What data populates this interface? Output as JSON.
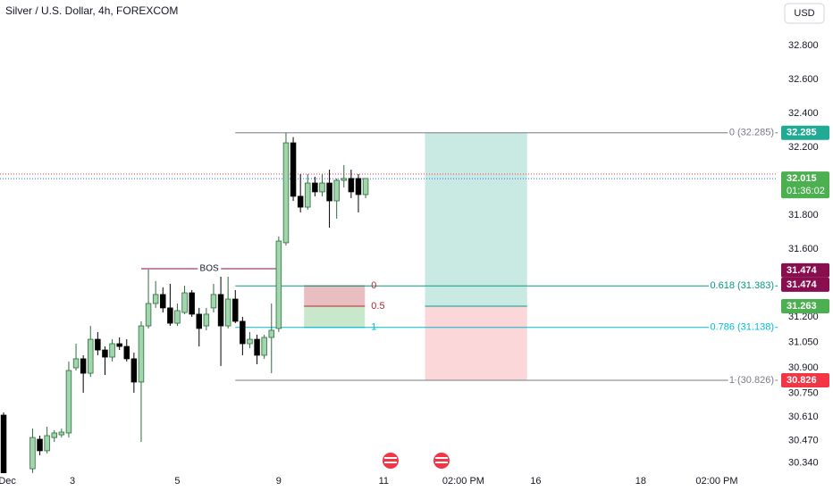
{
  "chart_data": {
    "type": "candlestick",
    "title": "Silver / U.S. Dollar, 4h, FOREXCOM",
    "currency": "USD",
    "up_color": "#9fd6ab",
    "up_border": "#2f6b3d",
    "down_color": "#000000",
    "x": [
      0,
      4,
      5,
      6,
      7,
      8,
      9,
      10,
      11,
      12,
      13,
      14,
      15,
      16,
      17,
      18,
      19,
      20,
      21,
      22,
      23,
      24,
      25,
      26,
      27,
      28,
      29,
      30,
      31,
      32,
      33,
      34,
      35,
      36,
      37,
      38,
      39,
      40,
      41,
      42,
      43,
      44,
      45,
      46,
      47,
      48,
      49,
      50
    ],
    "open": [
      30.621,
      30.305,
      30.479,
      30.411,
      30.489,
      30.505,
      30.516,
      30.9,
      30.953,
      30.868,
      31.068,
      31.005,
      30.963,
      31.042,
      31.026,
      30.953,
      30.816,
      31.147,
      31.279,
      31.332,
      31.253,
      31.163,
      31.226,
      31.342,
      31.216,
      31.147,
      31.253,
      31.332,
      31.147,
      31.305,
      31.174,
      31.042,
      31.068,
      30.974,
      31.079,
      31.132,
      31.637,
      32.226,
      31.911,
      31.847,
      31.989,
      31.937,
      31.989,
      31.884,
      32.005,
      32.016,
      32.016,
      31.921
    ],
    "high": [
      30.637,
      30.542,
      30.5,
      30.553,
      30.532,
      30.542,
      30.937,
      31.042,
      30.974,
      31.147,
      31.111,
      31.026,
      31.068,
      31.079,
      31.068,
      30.989,
      31.174,
      31.479,
      31.411,
      31.374,
      31.395,
      31.279,
      31.384,
      31.358,
      31.253,
      31.253,
      31.395,
      31.437,
      31.437,
      31.358,
      31.2,
      31.111,
      31.095,
      31.095,
      31.279,
      31.674,
      32.285,
      32.26,
      32.042,
      32.042,
      32.026,
      32.042,
      32.068,
      32.016,
      32.095,
      32.068,
      32.042,
      32.016
    ],
    "low": [
      30.28,
      30.28,
      30.384,
      30.395,
      30.463,
      30.489,
      30.489,
      30.884,
      30.753,
      30.847,
      30.974,
      30.858,
      30.937,
      31.005,
      30.937,
      30.753,
      30.463,
      31.132,
      31.253,
      31.226,
      31.147,
      31.147,
      31.216,
      31.2,
      31.026,
      31.121,
      31.226,
      30.911,
      31.132,
      31.163,
      30.974,
      31.016,
      30.921,
      30.953,
      30.868,
      31.111,
      31.621,
      31.884,
      31.816,
      31.832,
      31.911,
      31.911,
      31.726,
      31.779,
      31.963,
      31.9,
      31.816,
      31.9
    ],
    "close": [
      30.28,
      30.489,
      30.411,
      30.5,
      30.516,
      30.521,
      30.884,
      30.953,
      30.868,
      31.068,
      31.005,
      30.963,
      31.042,
      31.026,
      30.953,
      30.816,
      31.147,
      31.279,
      31.332,
      31.253,
      31.163,
      31.237,
      31.342,
      31.216,
      31.132,
      31.216,
      31.332,
      31.147,
      31.305,
      31.174,
      31.042,
      31.068,
      30.974,
      31.079,
      31.121,
      31.647,
      32.226,
      31.911,
      31.847,
      31.989,
      31.937,
      31.989,
      31.884,
      32.005,
      32.016,
      31.937,
      31.921,
      32.016
    ],
    "xlim": [
      -0.5,
      106.9
    ],
    "ylim": [
      30.279,
      33.068
    ],
    "xticks": [
      {
        "value": 0.5,
        "label": "Dec"
      },
      {
        "value": 9.5,
        "label": "3"
      },
      {
        "value": 24,
        "label": "5"
      },
      {
        "value": 38,
        "label": "9"
      },
      {
        "value": 52.5,
        "label": "11"
      },
      {
        "value": 63.5,
        "label": "02:00 PM"
      },
      {
        "value": 73.5,
        "label": "16"
      },
      {
        "value": 88,
        "label": "18"
      },
      {
        "value": 98.5,
        "label": "02:00 PM"
      }
    ],
    "yticks": [
      {
        "value": 32.8,
        "label": "32.800"
      },
      {
        "value": 32.6,
        "label": "32.600"
      },
      {
        "value": 32.4,
        "label": "32.400"
      },
      {
        "value": 32.2,
        "label": "32.200"
      },
      {
        "value": 31.8,
        "label": "31.800"
      },
      {
        "value": 31.6,
        "label": "31.600"
      },
      {
        "value": 31.2,
        "label": "31.200"
      },
      {
        "value": 31.05,
        "label": "31.050"
      },
      {
        "value": 30.9,
        "label": "30.900"
      },
      {
        "value": 30.75,
        "label": "30.750"
      },
      {
        "value": 30.61,
        "label": "30.610"
      },
      {
        "value": 30.47,
        "label": "30.470"
      },
      {
        "value": 30.34,
        "label": "30.340"
      }
    ],
    "bos": {
      "label": "BOS",
      "value": 31.484,
      "x_range": [
        19,
        37.8
      ],
      "color": "#880e4f"
    },
    "fib": {
      "x_start": 32,
      "values": [
        32.285,
        31.383,
        31.138,
        30.826
      ],
      "value_labels": [
        "0 (32.285)",
        "0.618 (31.383)",
        "0.786 (31.138)",
        "1 (30.826)"
      ],
      "colors": [
        "#787b86",
        "#089981",
        "#00bcd4",
        "#787b86"
      ]
    },
    "fib_box": {
      "x_range": [
        41.5,
        49.9
      ],
      "values": [
        31.383,
        31.263,
        31.138
      ],
      "value_labels": [
        "0",
        "0.5",
        "1"
      ],
      "colors": [
        "#b22833",
        "#b22833",
        "#00bcd4"
      ]
    },
    "position": {
      "x_range": [
        58.2,
        72.3
      ],
      "target": 32.285,
      "entry": 31.263,
      "stop": 30.826
    },
    "price_labels": {
      "values": [
        32.285,
        32.015,
        31.474,
        31.474,
        31.263,
        30.826
      ],
      "colors": [
        "#22ab94",
        "#4caf50",
        "#880e4f",
        "#880e4f",
        "#4caf50",
        "#f23645"
      ]
    },
    "countdown": "01:36:02",
    "last_line": 32.042
  }
}
